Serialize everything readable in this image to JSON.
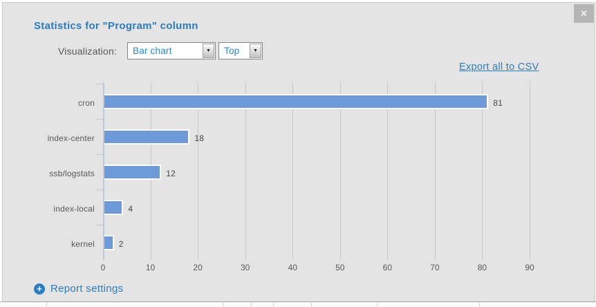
{
  "modal": {
    "title": "Statistics for \"Program\" column",
    "controls": {
      "visualization_label": "Visualization:",
      "visualization_value": "Bar chart",
      "top_value": "Top"
    },
    "export_link": "Export all to CSV",
    "report_settings_label": "Report settings"
  },
  "icons": {
    "close": "✕",
    "plus": "+",
    "dropdown_arrow": "▼"
  },
  "colors": {
    "accent_blue": "#2a7cc1",
    "dropdown_text_blue": "#2589cc",
    "bar_blue": "#6f9ad9",
    "modal_background": "#e4e4e4",
    "grid_line": "#c7c7c7",
    "axis_line": "#bcc8de",
    "label_gray": "#585858"
  },
  "chart_data": {
    "type": "bar",
    "orientation": "horizontal",
    "title": "",
    "categories": [
      "cron",
      "index-center",
      "ssb/logstats",
      "index-local",
      "kernel"
    ],
    "values": [
      81,
      18,
      12,
      4,
      2
    ],
    "xlabel": "",
    "ylabel": "",
    "xlim": [
      0,
      90
    ],
    "x_ticks": [
      0,
      10,
      20,
      30,
      40,
      50,
      60,
      70,
      80,
      90
    ],
    "grid": true,
    "legend": false
  }
}
